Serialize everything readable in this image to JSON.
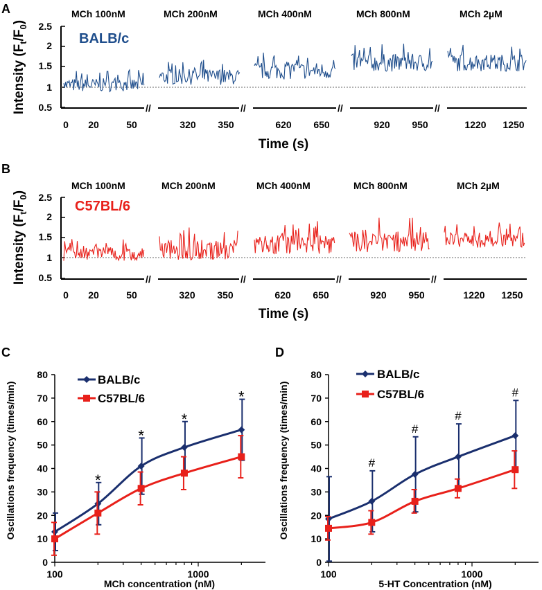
{
  "chart_data": [
    {
      "panel": "A",
      "type": "line",
      "strain_label": "BALB/c",
      "color": "#1f4e8c",
      "segment_labels": [
        "MCh 100nM",
        "MCh 200nM",
        "MCh 400nM",
        "MCh 800nM",
        "MCh 2µM"
      ],
      "segments_x_ticks": [
        [
          "0",
          "20",
          "50"
        ],
        [
          "320",
          "350"
        ],
        [
          "620",
          "650"
        ],
        [
          "920",
          "950"
        ],
        [
          "1220",
          "1250"
        ]
      ],
      "segment_means": [
        1.05,
        1.25,
        1.4,
        1.6,
        1.6
      ],
      "segment_amplitudes": [
        0.3,
        0.35,
        0.38,
        0.4,
        0.38
      ],
      "y_ticks": [
        "2.5",
        "2",
        "1.5",
        "1",
        "0.5"
      ],
      "ylim": [
        0.5,
        2.5
      ],
      "baseline": 1,
      "ylabel_main": "Intensity (F",
      "ylabel_sub1": "t",
      "ylabel_mid": "/F",
      "ylabel_sub2": "0",
      "ylabel_end": ")",
      "xlabel": "Time (s)",
      "break_mark": "//"
    },
    {
      "panel": "B",
      "type": "line",
      "strain_label": "C57BL/6",
      "color": "#e8201a",
      "segment_labels": [
        "MCh 100nM",
        "MCh 200nM",
        "MCh 400nM",
        "MCh 800nM",
        "MCh 2µM"
      ],
      "segments_x_ticks": [
        [
          "0",
          "20",
          "50"
        ],
        [
          "320",
          "350"
        ],
        [
          "620",
          "650"
        ],
        [
          "920",
          "950"
        ],
        [
          "1220",
          "1250"
        ]
      ],
      "segment_means": [
        1.1,
        1.2,
        1.35,
        1.4,
        1.45
      ],
      "segment_amplitudes": [
        0.3,
        0.45,
        0.45,
        0.48,
        0.35
      ],
      "y_ticks": [
        "2.5",
        "2",
        "1.5",
        "1",
        "0.5"
      ],
      "ylim": [
        0.5,
        2.5
      ],
      "baseline": 1,
      "ylabel_main": "Intensity (F",
      "ylabel_sub1": "t",
      "ylabel_mid": "/F",
      "ylabel_sub2": "0",
      "ylabel_end": ")",
      "xlabel": "Time (s)",
      "break_mark": "//"
    },
    {
      "panel": "C",
      "type": "line",
      "x": [
        100,
        200,
        400,
        800,
        2000
      ],
      "series": [
        {
          "name": "BALB/c",
          "color": "#1a2f6e",
          "marker": "diamond",
          "values": [
            13,
            25,
            41,
            49,
            56.5
          ],
          "err": [
            8,
            9,
            12,
            11,
            13
          ]
        },
        {
          "name": "C57BL/6",
          "color": "#e8201a",
          "marker": "square",
          "values": [
            10,
            21,
            31.5,
            38,
            45
          ],
          "err": [
            7,
            9,
            7,
            7,
            9
          ]
        }
      ],
      "annotations": [
        "",
        "*",
        "*",
        "*",
        "*"
      ],
      "y_ticks": [
        "80",
        "70",
        "60",
        "50",
        "40",
        "30",
        "20",
        "10",
        "0"
      ],
      "ylim": [
        0,
        80
      ],
      "x_ticks": [
        "100",
        "1000"
      ],
      "xlabel": "MCh concentration (nM)",
      "ylabel": "Oscillations frequency (times/min)"
    },
    {
      "panel": "D",
      "type": "line",
      "x": [
        100,
        200,
        400,
        800,
        2000
      ],
      "series": [
        {
          "name": "BALB/c",
          "color": "#1a2f6e",
          "marker": "diamond",
          "values": [
            18.5,
            26,
            37.5,
            45,
            54
          ],
          "err": [
            18,
            13,
            16,
            14,
            15
          ]
        },
        {
          "name": "C57BL/6",
          "color": "#e8201a",
          "marker": "square",
          "values": [
            14.5,
            17,
            26,
            31.5,
            39.5
          ],
          "err": [
            5,
            5,
            5,
            4,
            8
          ]
        }
      ],
      "annotations": [
        "",
        "#",
        "#",
        "#",
        "#"
      ],
      "y_ticks": [
        "80",
        "70",
        "60",
        "50",
        "40",
        "30",
        "20",
        "10",
        "0"
      ],
      "ylim": [
        0,
        80
      ],
      "x_ticks": [
        "100",
        "1000"
      ],
      "xlabel": "5-HT Concentration (nM)",
      "ylabel": "Oscillations frequency (times/min)"
    }
  ]
}
